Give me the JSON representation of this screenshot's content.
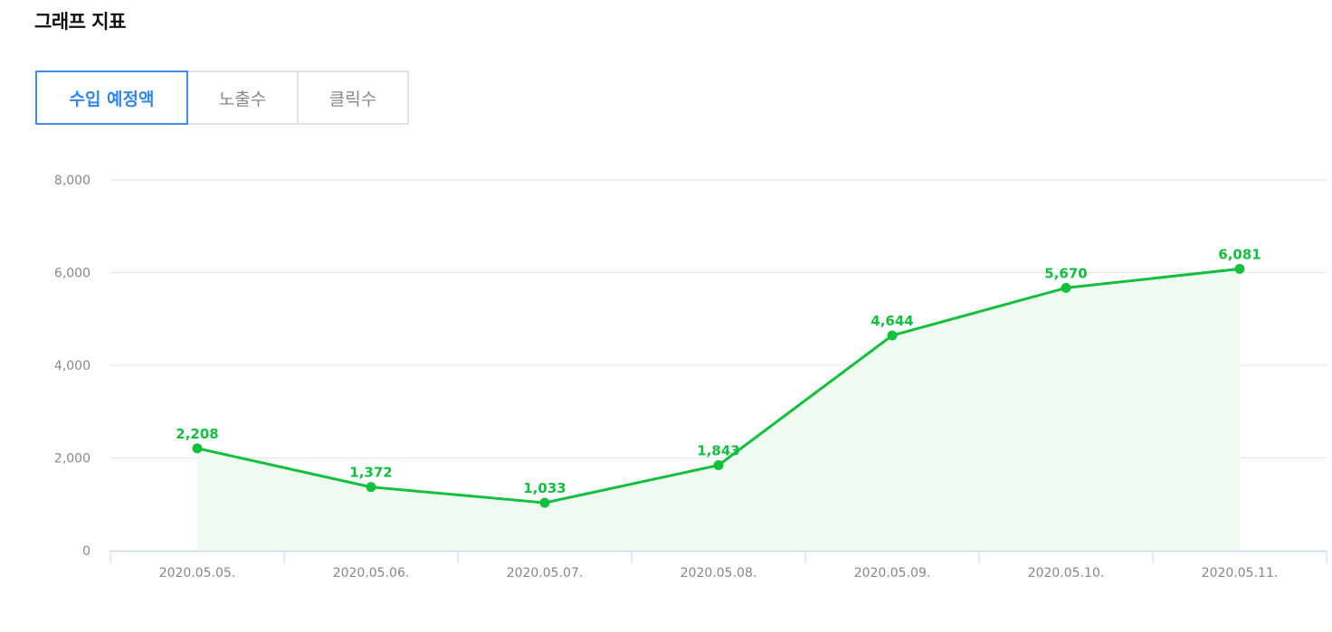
{
  "header": {
    "title": "그래프 지표"
  },
  "tabs": [
    {
      "label": "수입 예정액",
      "active": true
    },
    {
      "label": "노출수",
      "active": false
    },
    {
      "label": "클릭수",
      "active": false
    }
  ],
  "colors": {
    "series": "#11c03d",
    "area": "#effaf1",
    "grid": "#e4e4e4",
    "axis": "#c9d6e6",
    "tick_text": "#888888",
    "active_tab": "#2f86ef"
  },
  "chart_data": {
    "type": "line",
    "categories": [
      "2020.05.05.",
      "2020.05.06.",
      "2020.05.07.",
      "2020.05.08.",
      "2020.05.09.",
      "2020.05.10.",
      "2020.05.11."
    ],
    "series": [
      {
        "values": [
          2208,
          1372,
          1033,
          1843,
          4644,
          5670,
          6081
        ]
      }
    ],
    "data_labels": [
      "2,208",
      "1,372",
      "1,033",
      "1,843",
      "4,644",
      "5,670",
      "6,081"
    ],
    "yticks": [
      0,
      2000,
      4000,
      6000,
      8000
    ],
    "ytick_labels": [
      "0",
      "2,000",
      "4,000",
      "6,000",
      "8,000"
    ],
    "ylim": [
      0,
      8000
    ],
    "grid": true,
    "area_fill": true
  }
}
